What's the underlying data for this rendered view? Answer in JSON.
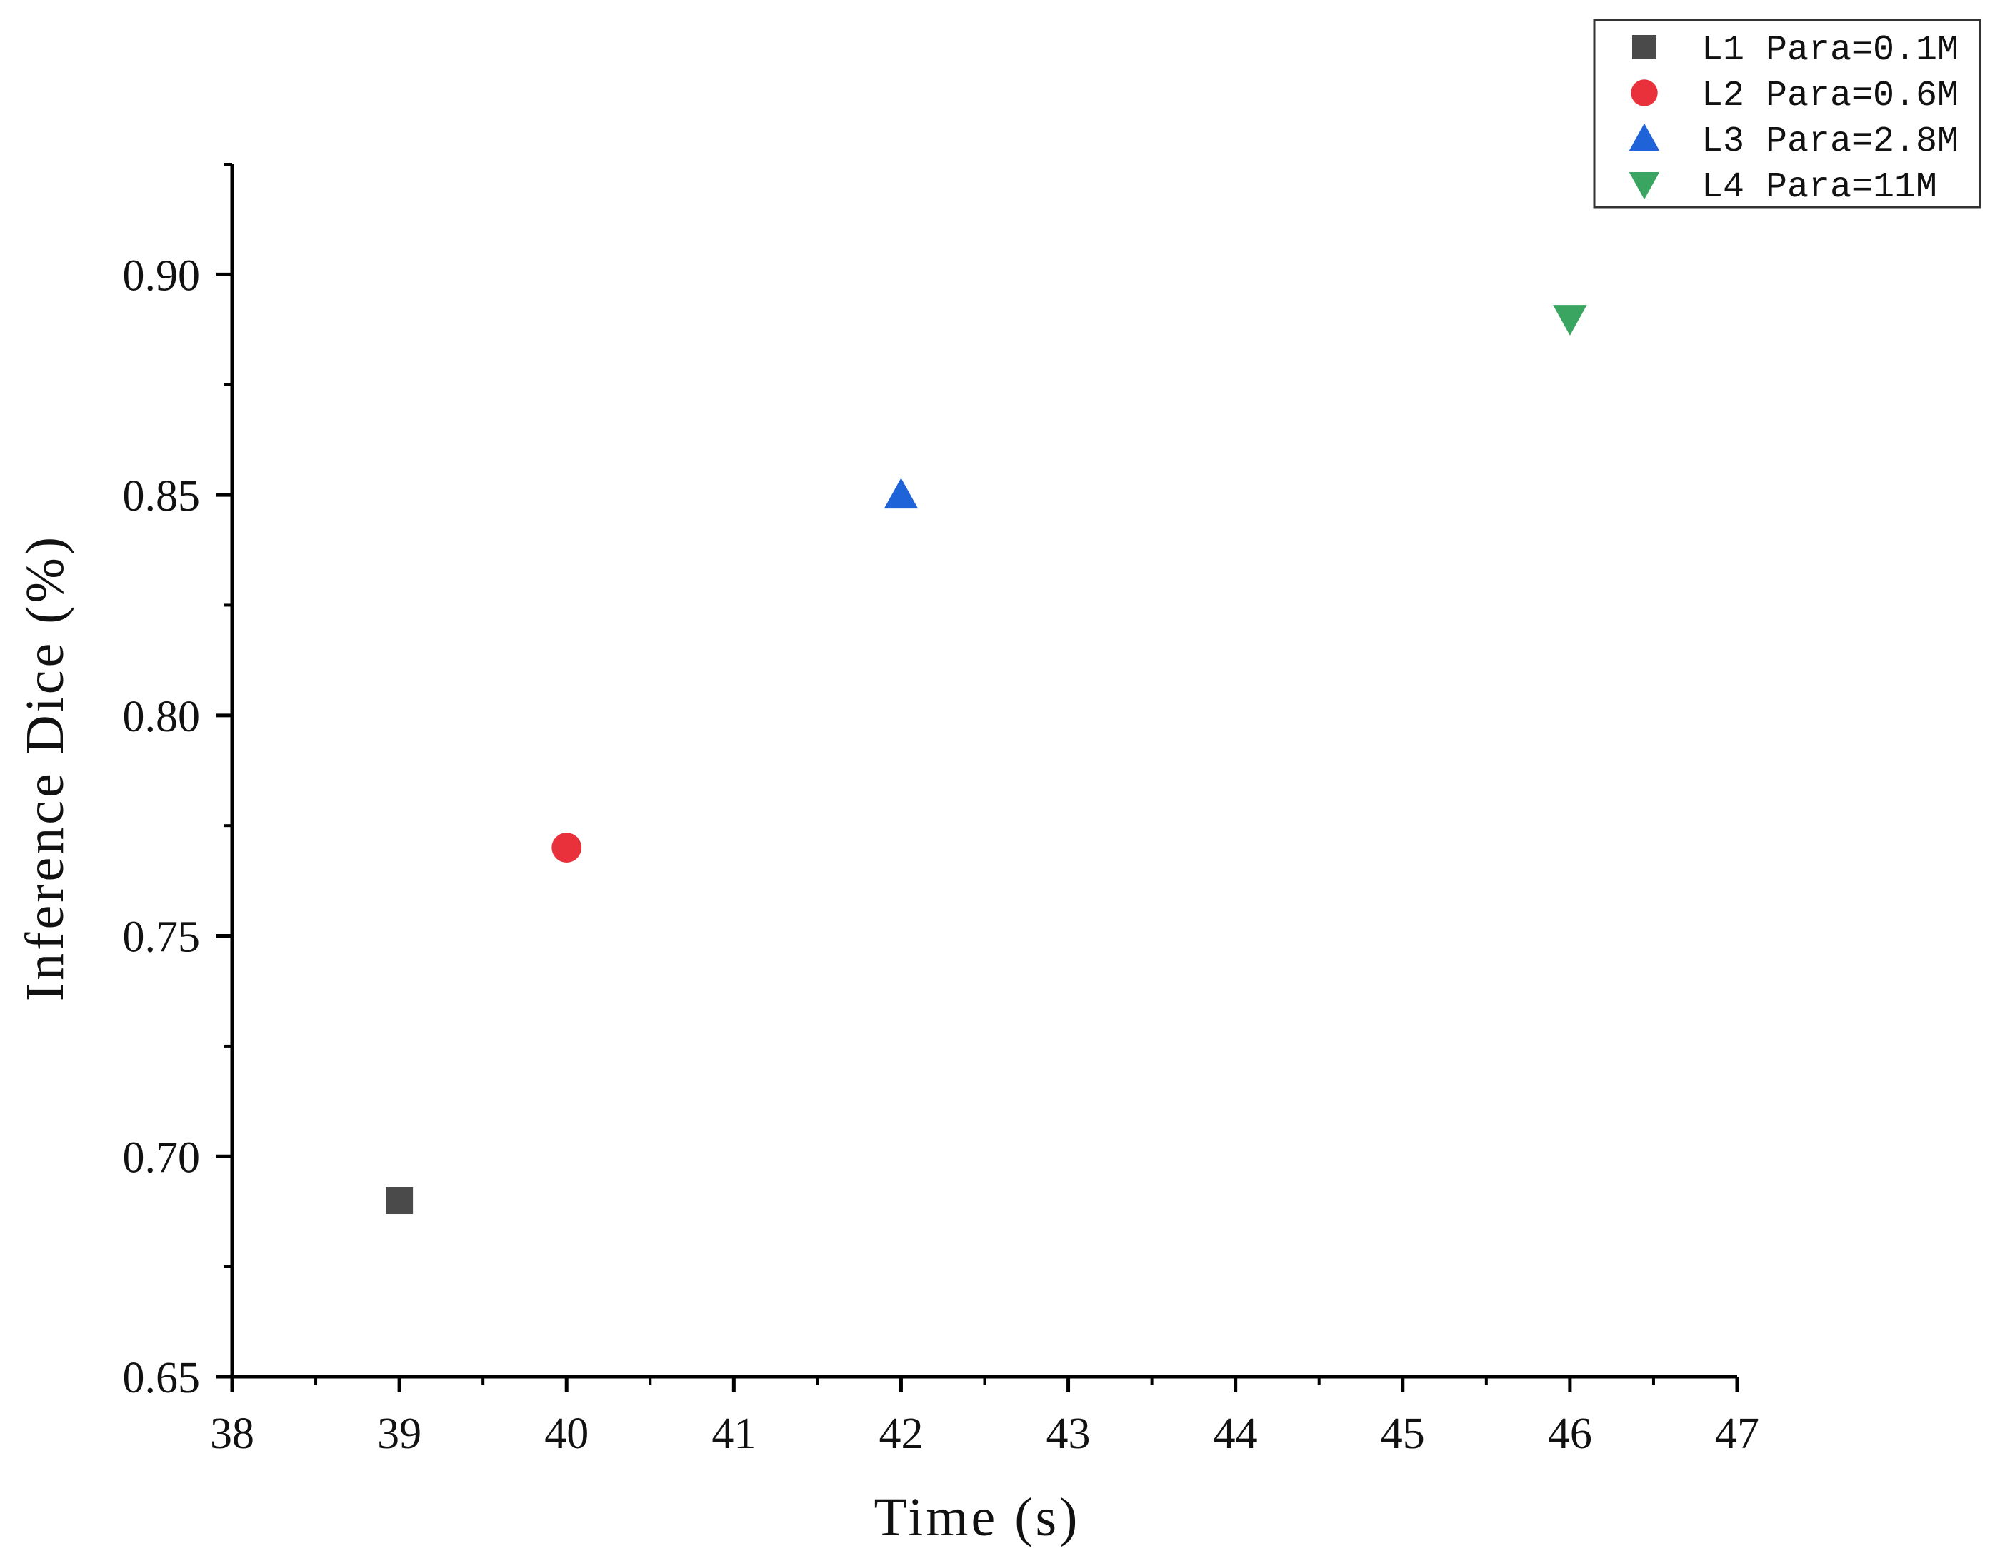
{
  "chart_data": {
    "type": "scatter",
    "xlabel": "Time (s)",
    "ylabel": "Inference Dice (%)",
    "xlim": [
      38,
      47
    ],
    "ylim": [
      0.65,
      0.925
    ],
    "x_ticks": [
      "38",
      "39",
      "40",
      "41",
      "42",
      "43",
      "44",
      "45",
      "46",
      "47"
    ],
    "y_ticks": [
      "0.65",
      "0.70",
      "0.75",
      "0.80",
      "0.85",
      "0.90"
    ],
    "legend_position": "top-right",
    "grid": false,
    "series": [
      {
        "name": "L1 Para=0.1M",
        "marker": "square",
        "color": "#4a4a4a",
        "x": [
          39
        ],
        "y": [
          0.69
        ]
      },
      {
        "name": "L2 Para=0.6M",
        "marker": "circle",
        "color": "#e8313a",
        "x": [
          40
        ],
        "y": [
          0.77
        ]
      },
      {
        "name": "L3 Para=2.8M",
        "marker": "triangle-up",
        "color": "#1f63d8",
        "x": [
          42
        ],
        "y": [
          0.85
        ]
      },
      {
        "name": "L4 Para=11M",
        "marker": "triangle-down",
        "color": "#3aa560",
        "x": [
          46
        ],
        "y": [
          0.89
        ]
      }
    ]
  }
}
